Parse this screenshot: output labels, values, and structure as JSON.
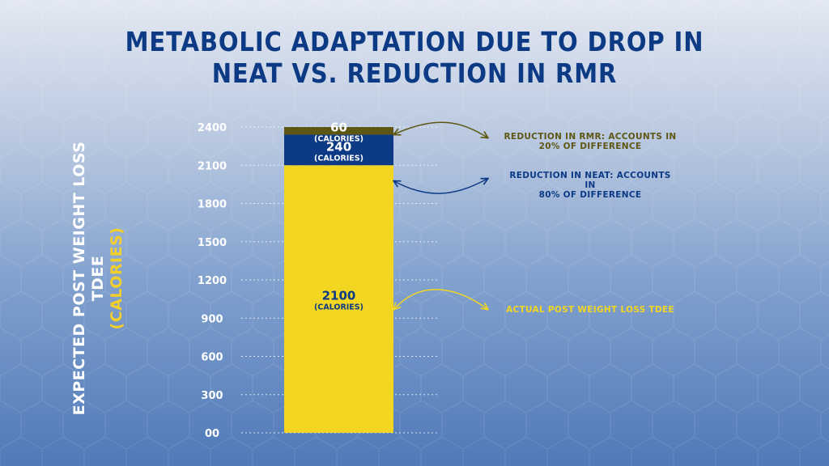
{
  "title": {
    "line1": "METABOLIC ADAPTATION DUE TO DROP IN",
    "line2": "NEAT VS. REDUCTION IN RMR"
  },
  "colors": {
    "title": "#0c3a85",
    "actual": "#f2d622",
    "neat": "#0c3a85",
    "rmr": "#5e5713",
    "rmr_text": "#5e5713",
    "neat_text": "#0c3a85",
    "actual_text": "#f2d622"
  },
  "chart_data": {
    "type": "bar",
    "stacked": true,
    "categories": [
      ""
    ],
    "series": [
      {
        "name": "",
        "values": [
          2100
        ],
        "value_label": "2100",
        "unit_label": "(CALORIES)",
        "annotation": "ACTUAL POST WEIGHT LOSS TDEE"
      },
      {
        "name": "",
        "values": [
          240
        ],
        "value_label": "240",
        "unit_label": "(CALORIES)",
        "annotation": "REDUCTION IN NEAT: ACCOUNTS IN 80% OF DIFFERENCE"
      },
      {
        "name": "",
        "values": [
          60
        ],
        "value_label": "60",
        "unit_label": "(CALORIES)",
        "annotation": "REDUCTION IN RMR: ACCOUNTS IN 20% OF DIFFERENCE"
      }
    ],
    "ylabel": "EXPECTED POST WEIGHT LOSS TDEE",
    "ylabel_unit": "(CALORIES)",
    "ylim": [
      0,
      2400
    ],
    "yticks": [
      {
        "value": 0,
        "label": "00"
      },
      {
        "value": 300,
        "label": "300"
      },
      {
        "value": 600,
        "label": "600"
      },
      {
        "value": 900,
        "label": "900"
      },
      {
        "value": 1200,
        "label": "1200"
      },
      {
        "value": 1500,
        "label": "1500"
      },
      {
        "value": 1800,
        "label": "1800"
      },
      {
        "value": 2100,
        "label": "2100"
      },
      {
        "value": 2400,
        "label": "2400"
      }
    ],
    "grid": true
  },
  "annotations": {
    "rmr": {
      "line1": "REDUCTION IN RMR: ACCOUNTS IN",
      "line2": "20% OF DIFFERENCE"
    },
    "neat": {
      "line1": "REDUCTION IN NEAT: ACCOUNTS IN",
      "line2": "80% OF DIFFERENCE"
    },
    "actual": {
      "line1": "ACTUAL POST WEIGHT LOSS TDEE"
    }
  }
}
